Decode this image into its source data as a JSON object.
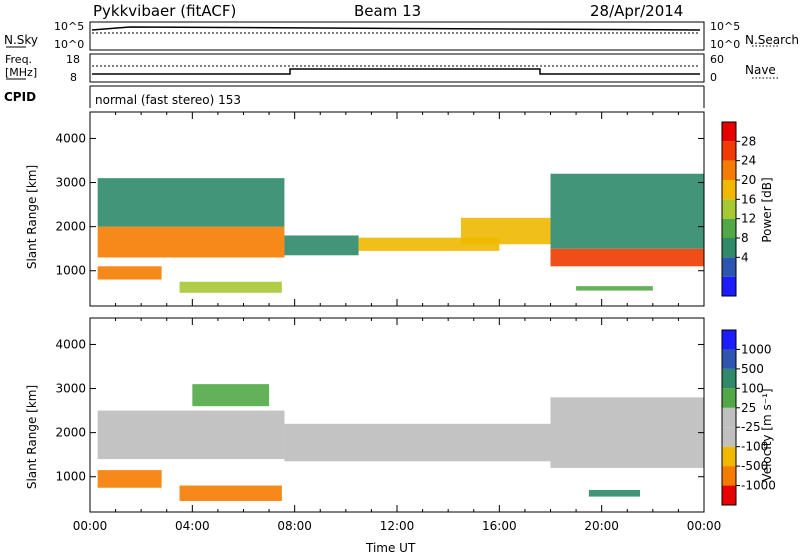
{
  "header": {
    "station": "Pykkvibaer (fitACF)",
    "beam": "Beam 13",
    "date": "28/Apr/2014"
  },
  "panels": {
    "nsky": {
      "label": "N.Sky",
      "ticks": [
        "10^5",
        "10^0"
      ]
    },
    "nsearch": {
      "label": "N.Search",
      "ticks": [
        "10^5",
        "10^0"
      ]
    },
    "freq": {
      "label_top": "Freq.",
      "label_bottom": "[MHz]",
      "ticks": [
        "18",
        "8"
      ]
    },
    "nave": {
      "label": "Nave",
      "ticks": [
        "60",
        "0"
      ]
    },
    "cpid": {
      "label": "CPID",
      "text": "normal (fast stereo) 153"
    }
  },
  "colors": {
    "power": [
      "#1c1cff",
      "#2c55b0",
      "#2f8a6a",
      "#52a846",
      "#a6c832",
      "#f0b800",
      "#f57c00",
      "#f03a00",
      "#e60000"
    ],
    "velocity": [
      "#1c1cff",
      "#2c55b0",
      "#2f8a6a",
      "#52a846",
      "#c0c0c0",
      "#c0c0c0",
      "#f0b800",
      "#f57c00",
      "#e60000"
    ],
    "ground_scatter": "#bdbdbd"
  },
  "chart_data": [
    {
      "type": "heatmap",
      "name": "power",
      "ylabel": "Slant Range [km]",
      "yticks": [
        1000,
        2000,
        3000,
        4000
      ],
      "ylim": [
        200,
        4600
      ],
      "xlim": [
        0,
        24
      ],
      "colorbar_label": "Power [dB]",
      "colorbar_ticks": [
        "28",
        "24",
        "20",
        "16",
        "12",
        "8",
        "4"
      ],
      "colorbar_range": [
        0,
        32
      ],
      "bands": [
        {
          "x": [
            0.3,
            7.6
          ],
          "y": [
            1300,
            2000
          ],
          "value": 22
        },
        {
          "x": [
            0.3,
            7.6
          ],
          "y": [
            2000,
            3100
          ],
          "value": 10
        },
        {
          "x": [
            0.3,
            2.8
          ],
          "y": [
            800,
            1100
          ],
          "value": 24
        },
        {
          "x": [
            3.5,
            7.5
          ],
          "y": [
            500,
            750
          ],
          "value": 16
        },
        {
          "x": [
            7.6,
            10.5
          ],
          "y": [
            1350,
            1800
          ],
          "value": 10
        },
        {
          "x": [
            10.5,
            16.0
          ],
          "y": [
            1450,
            1750
          ],
          "value": 18
        },
        {
          "x": [
            14.5,
            18.0
          ],
          "y": [
            1600,
            2200
          ],
          "value": 20
        },
        {
          "x": [
            18.0,
            24.0
          ],
          "y": [
            1100,
            1500
          ],
          "value": 26
        },
        {
          "x": [
            18.0,
            24.0
          ],
          "y": [
            1500,
            3200
          ],
          "value": 10
        },
        {
          "x": [
            19.0,
            22.0
          ],
          "y": [
            550,
            650
          ],
          "value": 12
        }
      ]
    },
    {
      "type": "heatmap",
      "name": "velocity",
      "xlabel": "Time UT",
      "xticks": [
        "00:00",
        "04:00",
        "08:00",
        "12:00",
        "16:00",
        "20:00",
        "00:00"
      ],
      "xlim": [
        0,
        24
      ],
      "ylabel": "Slant Range [km]",
      "yticks": [
        1000,
        2000,
        3000,
        4000
      ],
      "ylim": [
        200,
        4600
      ],
      "colorbar_label": "Velocity [m s⁻¹]",
      "colorbar_ticks": [
        "1000",
        "500",
        "100",
        "25",
        "-25",
        "-100",
        "-500",
        "-1000"
      ],
      "bands": [
        {
          "x": [
            0.3,
            7.6
          ],
          "y": [
            1400,
            2500
          ],
          "value": 0
        },
        {
          "x": [
            7.6,
            18.0
          ],
          "y": [
            1350,
            2200
          ],
          "value": 0
        },
        {
          "x": [
            18.0,
            24.0
          ],
          "y": [
            1200,
            2800
          ],
          "value": 0
        },
        {
          "x": [
            0.3,
            2.8
          ],
          "y": [
            750,
            1150
          ],
          "value": -300
        },
        {
          "x": [
            3.5,
            7.5
          ],
          "y": [
            450,
            800
          ],
          "value": -250
        },
        {
          "x": [
            4.0,
            7.0
          ],
          "y": [
            2600,
            3100
          ],
          "value": 80
        },
        {
          "x": [
            19.5,
            21.5
          ],
          "y": [
            550,
            700
          ],
          "value": 150
        }
      ]
    }
  ]
}
